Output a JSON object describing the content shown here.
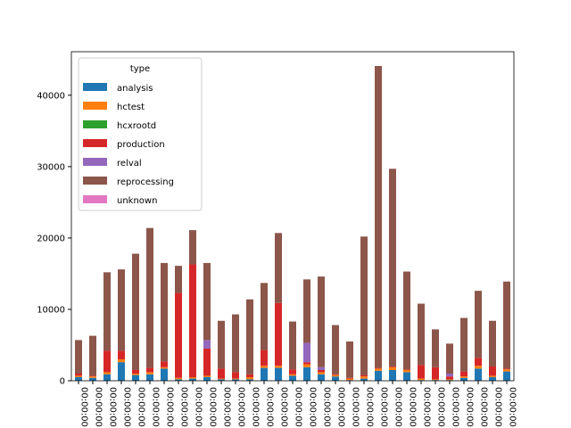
{
  "chart_data": {
    "type": "bar",
    "stacked": true,
    "categories": [
      "00:00:00",
      "00:00:00",
      "00:00:00",
      "00:00:00",
      "00:00:00",
      "00:00:00",
      "00:00:00",
      "00:00:00",
      "00:00:00",
      "00:00:00",
      "00:00:00",
      "00:00:00",
      "00:00:00",
      "00:00:00",
      "00:00:00",
      "00:00:00",
      "00:00:00",
      "00:00:00",
      "00:00:00",
      "00:00:00",
      "00:00:00",
      "00:00:00",
      "00:00:00",
      "00:00:00",
      "00:00:00",
      "00:00:00",
      "00:00:00",
      "00:00:00",
      "00:00:00",
      "00:00:00",
      "00:00:00"
    ],
    "series": [
      {
        "name": "analysis",
        "color": "#1f77b4",
        "values": [
          500,
          400,
          900,
          2600,
          800,
          900,
          1700,
          200,
          300,
          500,
          200,
          200,
          200,
          1800,
          1800,
          700,
          1900,
          900,
          600,
          100,
          300,
          1400,
          1500,
          1200,
          100,
          100,
          100,
          400,
          1700,
          500,
          1300
        ]
      },
      {
        "name": "hctest",
        "color": "#ff7f0e",
        "values": [
          200,
          200,
          300,
          400,
          200,
          300,
          200,
          200,
          200,
          200,
          100,
          100,
          300,
          300,
          300,
          200,
          400,
          300,
          200,
          200,
          300,
          300,
          400,
          300,
          200,
          100,
          100,
          200,
          400,
          200,
          300
        ]
      },
      {
        "name": "hcxrootd",
        "color": "#2ca02c",
        "values": [
          0,
          0,
          0,
          0,
          0,
          0,
          0,
          0,
          0,
          0,
          0,
          0,
          0,
          0,
          0,
          0,
          0,
          0,
          0,
          0,
          0,
          0,
          0,
          0,
          0,
          0,
          0,
          0,
          0,
          0,
          0
        ]
      },
      {
        "name": "production",
        "color": "#d62728",
        "values": [
          300,
          100,
          3000,
          1200,
          500,
          600,
          800,
          11900,
          15800,
          3800,
          1400,
          900,
          400,
          2200,
          8800,
          700,
          300,
          300,
          100,
          100,
          200,
          100,
          100,
          100,
          1900,
          1700,
          400,
          700,
          1100,
          1300,
          100
        ]
      },
      {
        "name": "relval",
        "color": "#9467bd",
        "values": [
          0,
          0,
          0,
          0,
          0,
          0,
          0,
          0,
          0,
          1200,
          0,
          0,
          0,
          0,
          0,
          0,
          2700,
          400,
          0,
          0,
          0,
          0,
          0,
          0,
          0,
          0,
          400,
          0,
          0,
          0,
          0
        ]
      },
      {
        "name": "reprocessing",
        "color": "#8c564b",
        "values": [
          4700,
          5600,
          11000,
          11400,
          16300,
          19600,
          13800,
          3800,
          4800,
          10800,
          6700,
          8100,
          10500,
          9400,
          9800,
          6700,
          8900,
          12700,
          6900,
          5100,
          19400,
          42300,
          27700,
          13700,
          8600,
          5300,
          4200,
          7500,
          9400,
          6400,
          12200
        ]
      },
      {
        "name": "unknown",
        "color": "#e377c2",
        "values": [
          0,
          0,
          0,
          0,
          0,
          0,
          0,
          0,
          0,
          0,
          0,
          0,
          0,
          0,
          0,
          0,
          0,
          0,
          0,
          0,
          0,
          0,
          0,
          0,
          0,
          0,
          0,
          0,
          0,
          0,
          0
        ]
      }
    ],
    "legend_title": "type",
    "legend": "upper left",
    "ylim": [
      0,
      46100
    ],
    "yticks": [
      0,
      10000,
      20000,
      30000,
      40000
    ]
  }
}
